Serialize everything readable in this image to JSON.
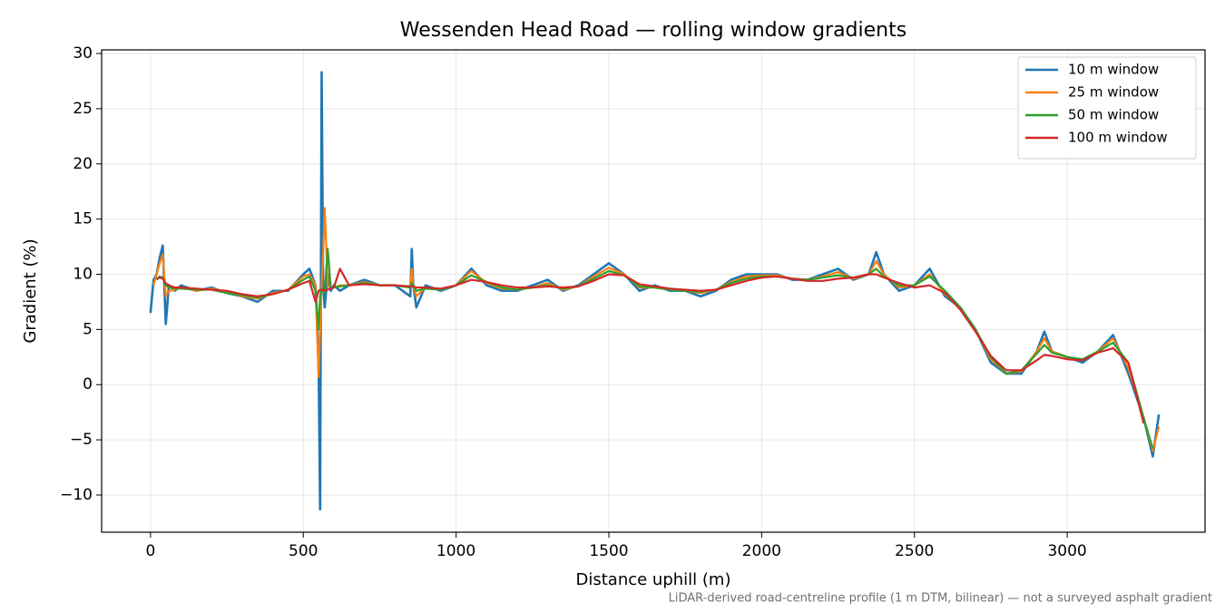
{
  "chart_data": {
    "type": "line",
    "title": "Wessenden Head Road — rolling window gradients",
    "xlabel": "Distance uphill (m)",
    "ylabel": "Gradient (%)",
    "footnote": "LiDAR-derived road-centreline profile (1 m DTM, bilinear) — not a surveyed asphalt gradient",
    "grid": true,
    "legend": "upper right",
    "xlim": [
      -160,
      3451
    ],
    "ylim": [
      -13.37,
      30.33
    ],
    "xticks": [
      0,
      500,
      1000,
      1500,
      2000,
      2500,
      3000
    ],
    "yticks": [
      {
        "value": -10,
        "label": "−10"
      },
      {
        "value": -5,
        "label": "−5"
      },
      0,
      5,
      10,
      15,
      20,
      25,
      30
    ],
    "x": [
      0,
      10,
      20,
      30,
      40,
      50,
      60,
      80,
      100,
      150,
      200,
      250,
      300,
      350,
      400,
      450,
      500,
      520,
      540,
      550,
      555,
      560,
      565,
      570,
      580,
      590,
      600,
      620,
      650,
      700,
      750,
      800,
      850,
      855,
      860,
      870,
      900,
      950,
      1000,
      1050,
      1100,
      1150,
      1200,
      1250,
      1300,
      1350,
      1400,
      1450,
      1500,
      1550,
      1600,
      1650,
      1700,
      1750,
      1800,
      1850,
      1900,
      1950,
      2000,
      2050,
      2100,
      2150,
      2200,
      2250,
      2300,
      2350,
      2375,
      2400,
      2450,
      2500,
      2550,
      2600,
      2650,
      2700,
      2750,
      2800,
      2850,
      2900,
      2925,
      2950,
      3000,
      3050,
      3100,
      3150,
      3200,
      3250,
      3280,
      3300
    ],
    "series": [
      {
        "name": "10 m window",
        "color": "#1f77b4",
        "values": [
          6.5,
          9.5,
          10,
          11.5,
          12.6,
          5.5,
          9,
          8.5,
          9,
          8.5,
          8.8,
          8.3,
          8,
          7.5,
          8.5,
          8.5,
          10,
          10.5,
          9,
          2,
          -11.3,
          28.3,
          9,
          7,
          10,
          8.5,
          9,
          8.5,
          9,
          9.5,
          9,
          9,
          8,
          12.3,
          9,
          7,
          9,
          8.5,
          9,
          10.5,
          9,
          8.5,
          8.5,
          9,
          9.5,
          8.5,
          9,
          10,
          11,
          10,
          8.5,
          9,
          8.5,
          8.5,
          8,
          8.5,
          9.5,
          10,
          10,
          10,
          9.5,
          9.5,
          10,
          10.5,
          9.5,
          10,
          12,
          10,
          8.5,
          9,
          10.5,
          8,
          7,
          5,
          2,
          1,
          1,
          3,
          4.8,
          3,
          2.5,
          2,
          3,
          4.5,
          1,
          -3,
          -6.5,
          -2.7
        ]
      },
      {
        "name": "25 m window",
        "color": "#ff7f0e",
        "values": [
          null,
          9,
          10,
          11,
          11.8,
          8,
          8.5,
          8.6,
          8.8,
          8.5,
          8.7,
          8.4,
          8,
          7.8,
          8.3,
          8.6,
          9.8,
          10,
          9,
          0.7,
          5,
          9,
          12,
          16,
          9,
          8.7,
          8.8,
          9,
          9,
          9.3,
          9,
          9,
          8.8,
          10.5,
          9,
          8,
          8.8,
          8.6,
          9,
          10.3,
          9.2,
          8.7,
          8.6,
          8.8,
          9.2,
          8.6,
          8.9,
          9.8,
          10.6,
          10,
          8.8,
          8.8,
          8.6,
          8.5,
          8.3,
          8.6,
          9.3,
          9.8,
          9.9,
          9.9,
          9.6,
          9.5,
          9.8,
          10.2,
          9.6,
          10,
          11.2,
          10,
          8.8,
          9,
          10,
          8.2,
          7,
          5,
          2.3,
          1,
          1.2,
          3,
          4.2,
          3,
          2.5,
          2.2,
          3,
          4.2,
          1.5,
          -3,
          -6,
          -3.8
        ]
      },
      {
        "name": "50 m window",
        "color": "#2ca02c",
        "values": [
          null,
          null,
          9.5,
          9.8,
          9.7,
          9,
          8.8,
          8.7,
          8.7,
          8.6,
          8.6,
          8.3,
          8.1,
          7.9,
          8.2,
          8.6,
          9.5,
          9.8,
          8.5,
          5,
          8,
          8.6,
          8.5,
          8.3,
          12.3,
          8.7,
          8.8,
          8.9,
          9,
          9.2,
          9,
          9,
          8.8,
          9.2,
          9,
          8.5,
          8.7,
          8.6,
          9,
          9.9,
          9.3,
          8.8,
          8.6,
          8.8,
          9,
          8.7,
          8.9,
          9.6,
          10.3,
          9.9,
          8.9,
          8.8,
          8.6,
          8.5,
          8.4,
          8.6,
          9.2,
          9.6,
          9.8,
          9.8,
          9.6,
          9.5,
          9.7,
          9.9,
          9.7,
          10,
          10.5,
          9.8,
          9,
          9,
          9.8,
          8.5,
          7,
          5,
          2.5,
          1,
          1.3,
          2.8,
          3.6,
          2.9,
          2.5,
          2.3,
          3,
          3.8,
          2,
          -3,
          -5.8,
          null
        ]
      },
      {
        "name": "100 m window",
        "color": "#d62728",
        "values": [
          null,
          null,
          9.6,
          9.7,
          9.6,
          9.2,
          9,
          8.8,
          8.8,
          8.7,
          8.6,
          8.5,
          8.2,
          8,
          8.2,
          8.6,
          9.2,
          9.4,
          7.5,
          8.5,
          8.6,
          8.6,
          8.6,
          8.5,
          8.6,
          8.7,
          8.8,
          10.5,
          9,
          9.1,
          9,
          9,
          8.9,
          8.9,
          8.9,
          8.8,
          8.8,
          8.7,
          9,
          9.5,
          9.3,
          9,
          8.8,
          8.8,
          8.9,
          8.8,
          8.9,
          9.4,
          10,
          9.9,
          9.1,
          8.9,
          8.7,
          8.6,
          8.5,
          8.6,
          9,
          9.4,
          9.7,
          9.8,
          9.6,
          9.4,
          9.4,
          9.6,
          9.7,
          10,
          10,
          9.7,
          9.2,
          8.8,
          9,
          8.3,
          6.8,
          4.8,
          2.6,
          1.3,
          1.3,
          2.2,
          2.7,
          2.6,
          2.3,
          2.2,
          2.9,
          3.3,
          2,
          -3.5,
          null,
          null
        ]
      }
    ]
  }
}
